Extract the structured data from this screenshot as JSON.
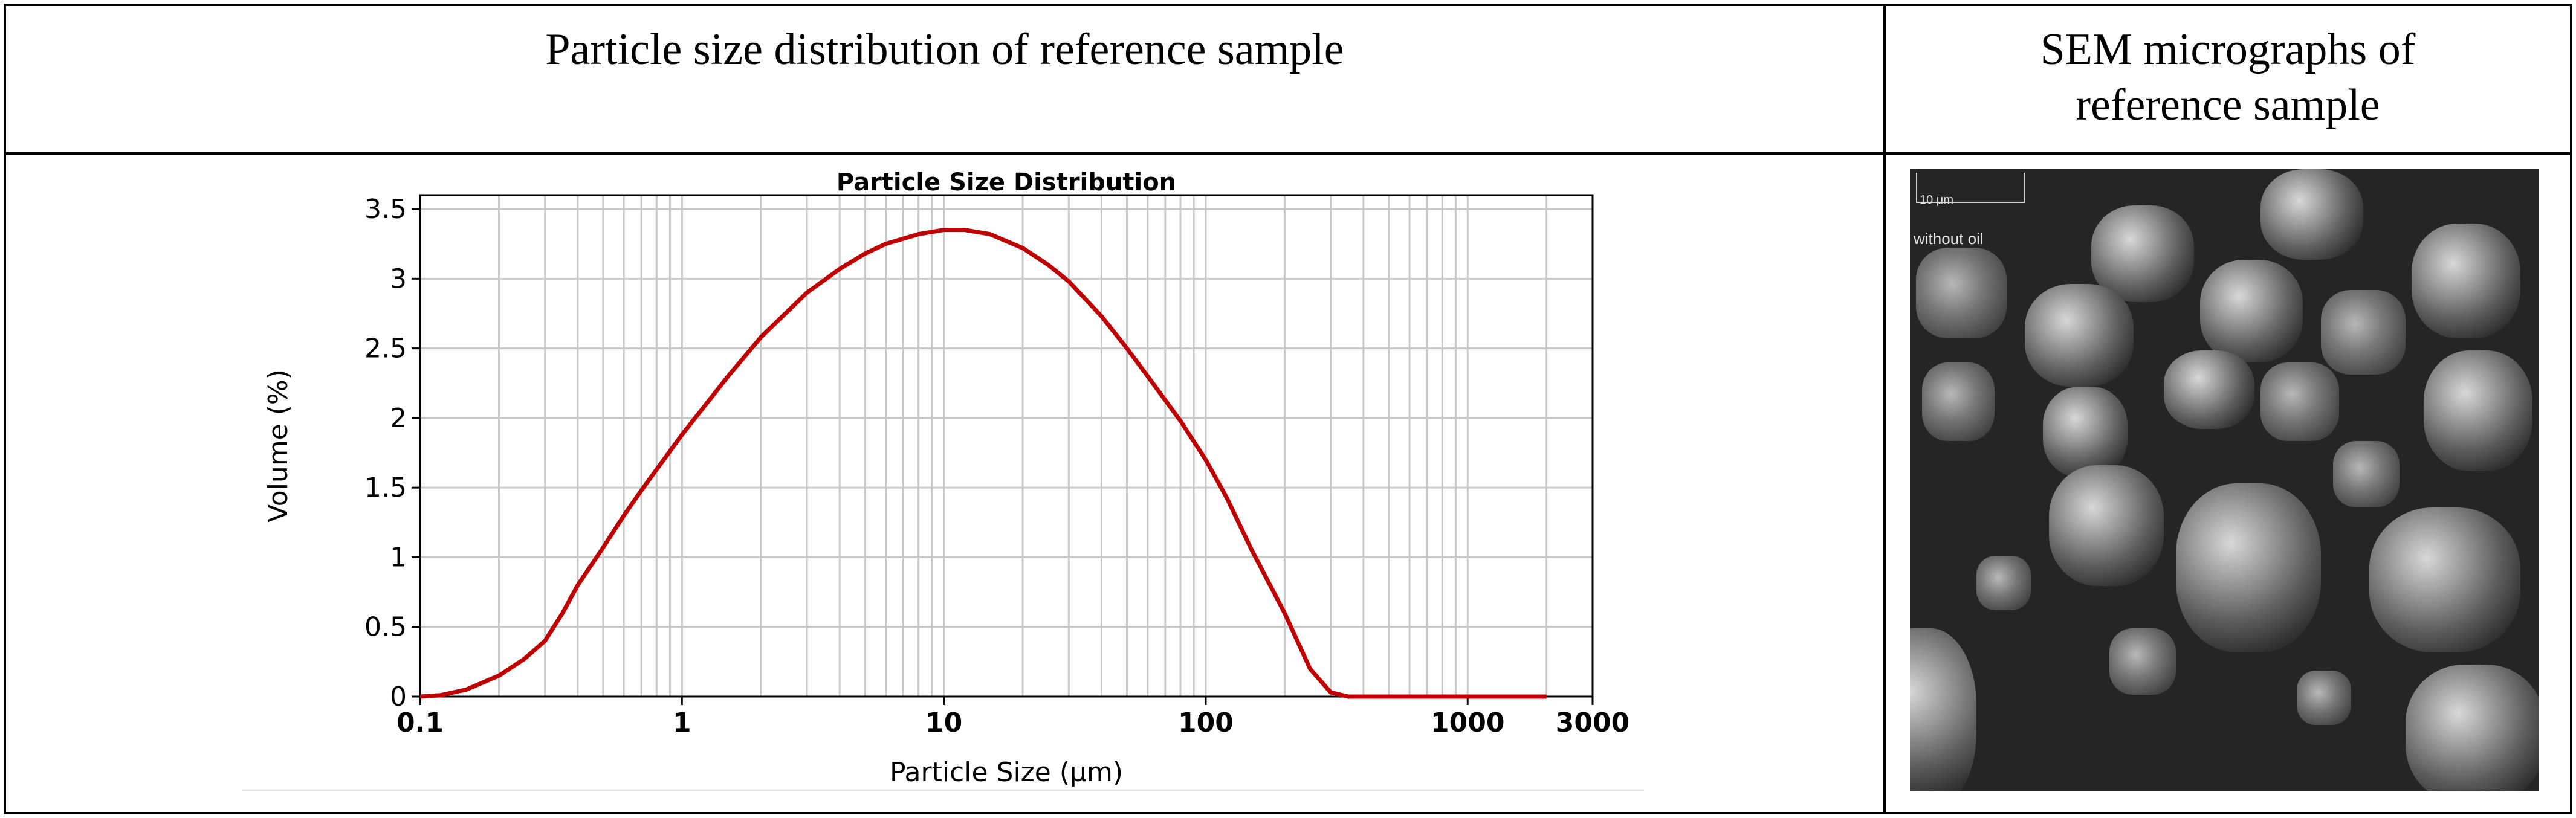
{
  "header": {
    "left": "Particle size distribution of reference sample",
    "right_line1": "SEM micrographs of",
    "right_line2": "reference sample"
  },
  "chart_data": {
    "type": "line",
    "title": "Particle Size Distribution",
    "xlabel": "Particle Size (μm)",
    "ylabel": "Volume (%)",
    "xscale": "log",
    "xlim": [
      0.1,
      3000
    ],
    "ylim": [
      0,
      3.6
    ],
    "xticks": [
      {
        "value": 0.1,
        "label": "0.1"
      },
      {
        "value": 1,
        "label": "1"
      },
      {
        "value": 10,
        "label": "10"
      },
      {
        "value": 100,
        "label": "100"
      },
      {
        "value": 1000,
        "label": "1000"
      },
      {
        "value": 3000,
        "label": "3000"
      }
    ],
    "yticks": [
      {
        "value": 0,
        "label": "0"
      },
      {
        "value": 0.5,
        "label": "0.5"
      },
      {
        "value": 1,
        "label": "1"
      },
      {
        "value": 1.5,
        "label": "1.5"
      },
      {
        "value": 2,
        "label": "2"
      },
      {
        "value": 2.5,
        "label": "2.5"
      },
      {
        "value": 3,
        "label": "3"
      },
      {
        "value": 3.5,
        "label": "3.5"
      }
    ],
    "grid": true,
    "line_color": "#c00000",
    "series": [
      {
        "x": [
          0.1,
          0.12,
          0.15,
          0.2,
          0.25,
          0.3,
          0.35,
          0.4,
          0.5,
          0.6,
          0.7,
          0.8,
          1,
          1.5,
          2,
          3,
          4,
          5,
          6,
          8,
          10,
          12,
          15,
          20,
          25,
          30,
          40,
          50,
          60,
          80,
          100,
          120,
          150,
          200,
          250,
          300,
          350,
          400,
          500,
          1000,
          2000
        ],
        "y": [
          0,
          0.01,
          0.05,
          0.15,
          0.27,
          0.4,
          0.6,
          0.8,
          1.07,
          1.3,
          1.48,
          1.63,
          1.88,
          2.3,
          2.58,
          2.9,
          3.07,
          3.18,
          3.25,
          3.32,
          3.35,
          3.35,
          3.32,
          3.22,
          3.1,
          2.98,
          2.73,
          2.5,
          2.3,
          1.98,
          1.7,
          1.43,
          1.05,
          0.6,
          0.2,
          0.03,
          0,
          0,
          0,
          0,
          0
        ]
      }
    ]
  },
  "sem": {
    "scale_label": "10 μm",
    "image_label": "without oil"
  }
}
